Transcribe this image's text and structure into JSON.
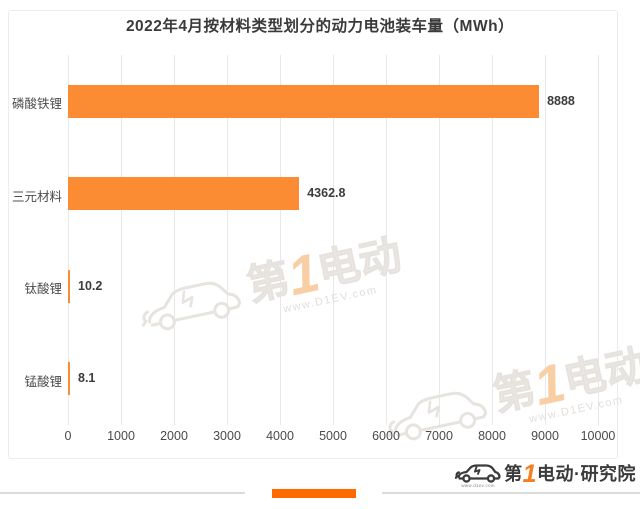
{
  "chart_data": {
    "type": "bar",
    "orientation": "horizontal",
    "title": "2022年4月按材料类型划分的动力电池装车量（MWh）",
    "categories": [
      "磷酸铁锂",
      "三元材料",
      "钛酸锂",
      "锰酸锂"
    ],
    "values": [
      8888,
      4362.8,
      10.2,
      8.1
    ],
    "value_labels": [
      "8888",
      "4362.8",
      "10.2",
      "8.1"
    ],
    "xlim": [
      0,
      10000
    ],
    "x_ticks": [
      0,
      1000,
      2000,
      3000,
      4000,
      5000,
      6000,
      7000,
      8000,
      9000,
      10000
    ],
    "grid": true,
    "legend": "none",
    "bar_color": "#FB8C34"
  },
  "colors": {
    "bar_orange": "#FB8C34",
    "accent_orange": "#FF6A00",
    "gridline": "#E8E8E8",
    "title_text": "#3A3A3A",
    "axis_text": "#4A4A4A",
    "divider_gray": "#DBDBDB",
    "logo_dark": "#3B3B3B",
    "logo_orange": "#F57E20"
  },
  "watermark": {
    "prefix": "第",
    "one": "1",
    "suffix": "电动",
    "url": "www.D1EV.com"
  },
  "footer": {
    "logo_prefix": "第",
    "logo_one": "1",
    "logo_suffix": "电动",
    "logo_dot": "·",
    "logo_org": "研究院",
    "logo_url": "www.d1ev.com"
  }
}
